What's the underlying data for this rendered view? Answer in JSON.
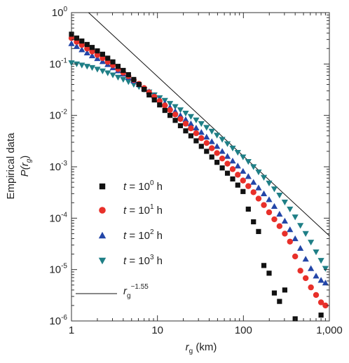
{
  "chart_data": {
    "type": "scatter",
    "x_scale": "log",
    "y_scale": "log",
    "xlim": [
      1,
      1000
    ],
    "ylim": [
      1e-06,
      1
    ],
    "xlabel": "r",
    "xlabel_sub": "g",
    "xlabel_unit": " (km)",
    "ylabel_line1": "Empirical data",
    "ylabel_line2": "P(r",
    "ylabel_line2_sub": "g",
    "ylabel_line2_end": ")",
    "x_ticks": [
      {
        "value": 1,
        "label": "1"
      },
      {
        "value": 10,
        "label": "10"
      },
      {
        "value": 100,
        "label": "100"
      },
      {
        "value": 1000,
        "label": "1,000"
      }
    ],
    "y_ticks": [
      {
        "value": 1,
        "base": "10",
        "exp": "0"
      },
      {
        "value": 0.1,
        "base": "10",
        "exp": "-1"
      },
      {
        "value": 0.01,
        "base": "10",
        "exp": "-2"
      },
      {
        "value": 0.001,
        "base": "10",
        "exp": "-3"
      },
      {
        "value": 0.0001,
        "base": "10",
        "exp": "-4"
      },
      {
        "value": 1e-05,
        "base": "10",
        "exp": "-5"
      },
      {
        "value": 1e-06,
        "base": "10",
        "exp": "-6"
      }
    ],
    "grid": false,
    "legend_position": "bottom-left",
    "series": [
      {
        "label_t": "t",
        "label_eq": " = 10",
        "label_exp": "0",
        "label_unit": " h",
        "marker": "square",
        "color": "#111111",
        "x": [
          1.0,
          1.15,
          1.32,
          1.52,
          1.74,
          2.0,
          2.3,
          2.64,
          3.03,
          3.48,
          4.0,
          4.6,
          5.3,
          6.1,
          7.0,
          8.0,
          9.2,
          10.6,
          12.2,
          14.0,
          16.1,
          18.5,
          21.3,
          24.5,
          28.2,
          32.4,
          37.3,
          42.9,
          49.3,
          56.7,
          65.2,
          75,
          86,
          99,
          114,
          131,
          150,
          173,
          199,
          229,
          263,
          303,
          400,
          600,
          800
        ],
        "y": [
          0.38,
          0.32,
          0.28,
          0.24,
          0.21,
          0.18,
          0.155,
          0.13,
          0.11,
          0.09,
          0.075,
          0.062,
          0.05,
          0.04,
          0.032,
          0.025,
          0.02,
          0.016,
          0.0125,
          0.01,
          0.008,
          0.0063,
          0.005,
          0.004,
          0.0032,
          0.0025,
          0.002,
          0.00155,
          0.00122,
          0.00095,
          0.00075,
          0.00058,
          0.00044,
          0.00033,
          0.00015,
          8.5e-05,
          5.5e-05,
          1.2e-05,
          8.5e-06,
          3.5e-06,
          2.4e-06,
          4e-06,
          1.1e-06,
          9e-07,
          1.3e-06
        ]
      },
      {
        "label_t": "t",
        "label_eq": " = 10",
        "label_exp": "1",
        "label_unit": " h",
        "marker": "circle",
        "color": "#e8302a",
        "x": [
          1.0,
          1.15,
          1.32,
          1.52,
          1.74,
          2.0,
          2.3,
          2.64,
          3.03,
          3.48,
          4.0,
          4.6,
          5.3,
          6.1,
          7.0,
          8.0,
          9.2,
          10.6,
          12.2,
          14.0,
          16.1,
          18.5,
          21.3,
          24.5,
          28.2,
          32.4,
          37.3,
          42.9,
          49.3,
          56.7,
          65.2,
          75,
          86,
          99,
          114,
          131,
          150,
          173,
          199,
          229,
          263,
          303,
          348,
          400,
          460,
          530,
          610,
          700,
          800,
          900
        ],
        "y": [
          0.32,
          0.27,
          0.235,
          0.2,
          0.175,
          0.15,
          0.13,
          0.11,
          0.095,
          0.08,
          0.068,
          0.058,
          0.049,
          0.041,
          0.034,
          0.028,
          0.023,
          0.019,
          0.0156,
          0.0127,
          0.0104,
          0.0085,
          0.0069,
          0.0056,
          0.0045,
          0.0036,
          0.0029,
          0.0023,
          0.00185,
          0.00145,
          0.00115,
          0.0009,
          0.0007,
          0.00054,
          0.00042,
          0.00032,
          0.00024,
          0.00018,
          0.00013,
          9.5e-05,
          7e-05,
          5e-05,
          3.5e-05,
          1.8e-05,
          9.5e-06,
          6.8e-06,
          4.5e-06,
          3.2e-06,
          2.3e-06,
          2e-06
        ]
      },
      {
        "label_t": "t",
        "label_eq": " = 10",
        "label_exp": "2",
        "label_unit": " h",
        "marker": "triangle-up",
        "color": "#2346a8",
        "x": [
          1.0,
          1.15,
          1.32,
          1.52,
          1.74,
          2.0,
          2.3,
          2.64,
          3.03,
          3.48,
          4.0,
          4.6,
          5.3,
          6.1,
          7.0,
          8.0,
          9.2,
          10.6,
          12.2,
          14.0,
          16.1,
          18.5,
          21.3,
          24.5,
          28.2,
          32.4,
          37.3,
          42.9,
          49.3,
          56.7,
          65.2,
          75,
          86,
          99,
          114,
          131,
          150,
          173,
          199,
          229,
          263,
          303,
          348,
          400,
          460,
          530,
          610,
          700,
          800,
          900
        ],
        "y": [
          0.25,
          0.22,
          0.19,
          0.165,
          0.145,
          0.128,
          0.112,
          0.098,
          0.085,
          0.074,
          0.064,
          0.055,
          0.047,
          0.04,
          0.034,
          0.029,
          0.024,
          0.0205,
          0.0172,
          0.0144,
          0.012,
          0.01,
          0.0083,
          0.0069,
          0.0057,
          0.0047,
          0.0038,
          0.0031,
          0.0025,
          0.002,
          0.0016,
          0.0013,
          0.00104,
          0.00082,
          0.00065,
          0.0005,
          0.00039,
          0.0003,
          0.00023,
          0.00017,
          0.00012,
          8.8e-05,
          6e-05,
          4e-05,
          2.6e-05,
          1.6e-05,
          1.05e-05,
          7.5e-06,
          6.2e-06,
          5.5e-06
        ]
      },
      {
        "label_t": "t",
        "label_eq": " = 10",
        "label_exp": "3",
        "label_unit": " h",
        "marker": "triangle-down",
        "color": "#1f7f86",
        "x": [
          1.0,
          1.15,
          1.32,
          1.52,
          1.74,
          2.0,
          2.3,
          2.64,
          3.03,
          3.48,
          4.0,
          4.6,
          5.3,
          6.1,
          7.0,
          8.0,
          9.2,
          10.6,
          12.2,
          14.0,
          16.1,
          18.5,
          21.3,
          24.5,
          28.2,
          32.4,
          37.3,
          42.9,
          49.3,
          56.7,
          65.2,
          75,
          86,
          99,
          114,
          131,
          150,
          173,
          199,
          229,
          263,
          303,
          348,
          400,
          460,
          530,
          610,
          700,
          800,
          900
        ],
        "y": [
          0.105,
          0.1,
          0.095,
          0.09,
          0.085,
          0.079,
          0.073,
          0.067,
          0.061,
          0.055,
          0.05,
          0.045,
          0.04,
          0.036,
          0.032,
          0.0285,
          0.025,
          0.022,
          0.0195,
          0.017,
          0.0148,
          0.0128,
          0.011,
          0.0095,
          0.0081,
          0.0069,
          0.0058,
          0.0049,
          0.0041,
          0.0034,
          0.0028,
          0.0023,
          0.0019,
          0.00155,
          0.00126,
          0.001,
          0.00079,
          0.00062,
          0.00048,
          0.00037,
          0.00028,
          0.000205,
          0.00015,
          0.000105,
          7.2e-05,
          5e-05,
          3.4e-05,
          2.2e-05,
          1.5e-05,
          1.05e-05
        ]
      }
    ],
    "reference_line": {
      "label_base": "r",
      "label_sub": "g",
      "label_exp": "−1.55",
      "slope": -1.55,
      "x": [
        1.58,
        1000
      ],
      "amplitude": 2.03,
      "color": "#111111"
    }
  }
}
